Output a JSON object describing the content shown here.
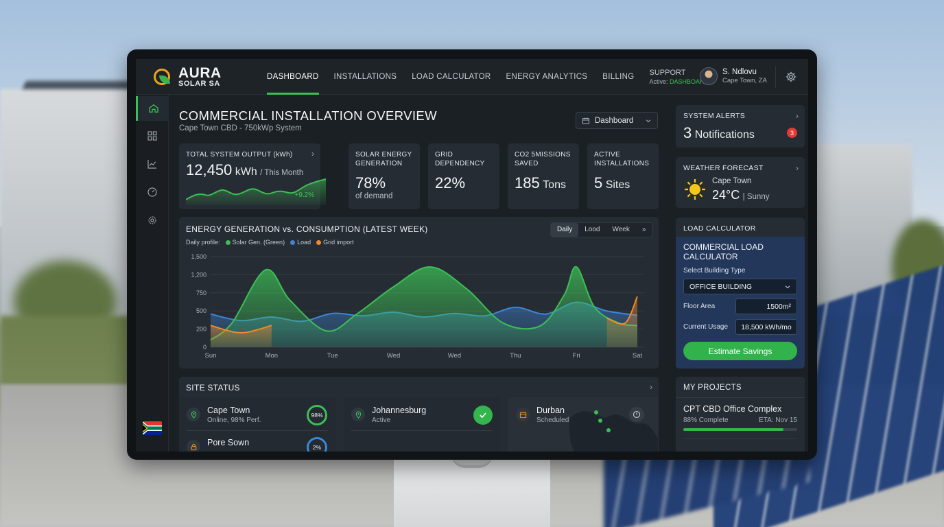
{
  "brand": {
    "name": "AURA",
    "sub": "SOLAR SA"
  },
  "nav": {
    "items": [
      "DASHBOARD",
      "INSTALLATIONS",
      "LOAD CALCULATOR",
      "ENERGY ANALYTICS",
      "BILLING"
    ],
    "support_label": "SUPPORT",
    "support_active_prefix": "Active:",
    "support_active_value": "DASHBOARD"
  },
  "user": {
    "name": "S. Ndlovu",
    "location": "Cape Town, ZA"
  },
  "page": {
    "title": "COMMERCIAL INSTALLATION OVERVIEW",
    "subtitle": "Cape Town CBD - 750kWp System",
    "view_select": "Dashboard"
  },
  "kpis": {
    "total": {
      "label": "TOTAL SYSTEM OUTPUT (kWh)",
      "value": "12,450",
      "unit": "kWh",
      "period": "/ This Month",
      "change": "+9.2%"
    },
    "solar": {
      "label1": "SOLAR ENERGY",
      "label2": "GENERATION",
      "value": "78%",
      "sub": "of demand"
    },
    "grid": {
      "label1": "GRID",
      "label2": "DEPENDENCY",
      "value": "22%"
    },
    "co2": {
      "label1": "CO2 5MISSIONS",
      "label2": "SAVED",
      "value": "185",
      "unit": "Tons"
    },
    "active": {
      "label1": "ACTIVE",
      "label2": "INSTALLATIONS",
      "value": "5",
      "unit": "Sites"
    }
  },
  "chart": {
    "title": "ENERGY GENERATION vs. CONSUMPTION (LATEST WEEK)",
    "legend_prefix": "Daily profile:",
    "tabs": [
      "Daily",
      "Lood",
      "Week"
    ],
    "tabs_more": "»"
  },
  "chart_data": {
    "type": "area",
    "categories": [
      "Sun",
      "Mon",
      "Tue",
      "Wed",
      "Wed",
      "Thu",
      "Fri",
      "Sat"
    ],
    "yticks": [
      "1,500",
      "1,200",
      "750",
      "500",
      "200",
      "0"
    ],
    "ylim": [
      0,
      1500
    ],
    "grid": true,
    "series": [
      {
        "name": "Solar Gen. (Green)",
        "color": "#3cbf55",
        "x": [
          0,
          0.35,
          0.9,
          1.3,
          1.9,
          2.4,
          3.0,
          3.6,
          4.2,
          4.8,
          5.4,
          5.8,
          6.0,
          6.3,
          6.7,
          7.0
        ],
        "values": [
          80,
          300,
          1280,
          650,
          180,
          450,
          900,
          1330,
          850,
          300,
          250,
          720,
          1330,
          550,
          300,
          260
        ]
      },
      {
        "name": "Load",
        "color": "#3d86d6",
        "x": [
          0,
          0.5,
          1.0,
          1.5,
          2.0,
          2.5,
          3.0,
          3.5,
          4.0,
          4.5,
          5.0,
          5.5,
          6.0,
          6.5,
          7.0
        ],
        "values": [
          450,
          340,
          400,
          330,
          460,
          420,
          480,
          400,
          460,
          420,
          550,
          450,
          620,
          500,
          430
        ]
      },
      {
        "name": "Grid import",
        "color": "#f08a2c",
        "x": [
          0,
          0.5,
          1.0,
          6.5,
          6.8,
          7.0
        ],
        "values": [
          260,
          160,
          260,
          380,
          300,
          700
        ]
      }
    ]
  },
  "site_status": {
    "title": "SITE STATUS",
    "sites": [
      {
        "name": "Cape Town",
        "sub": "Online, 98% Perf.",
        "badge": "98%"
      },
      {
        "name": "Johannesburg",
        "sub": "Active"
      },
      {
        "name": "Durban",
        "sub": "Scheduled"
      },
      {
        "name": "Pore Sown",
        "badge": "2%"
      }
    ]
  },
  "alerts": {
    "title": "SYSTEM ALERTS",
    "count": "3",
    "label": "Notifications",
    "badge": "3"
  },
  "weather": {
    "title": "WEATHER FORECAST",
    "city": "Cape Town",
    "temp": "24°C",
    "cond": "| Sunny"
  },
  "load_calculator": {
    "header": "LOAD CALCULATOR",
    "title1": "COMMERCIAL LOAD",
    "title2": "CALCULATOR",
    "building_label": "Select Building Type",
    "building_value": "OFFICE BUILDING",
    "floor_label": "Floor Area",
    "floor_value": "1500m²",
    "usage_label": "Current Usage",
    "usage_value": "18,500 kWh/mo",
    "button": "Estimate Savings"
  },
  "projects": {
    "title": "MY PROJECTS",
    "name": "CPT CBD Office Complex",
    "progress_text": "88% Complete",
    "eta": "ETA: Nov 15",
    "progress": 0.88
  },
  "colors": {
    "accent": "#3cbf55",
    "alert": "#e53935",
    "panel": "#262c33",
    "blue_panel": "#23375a"
  }
}
